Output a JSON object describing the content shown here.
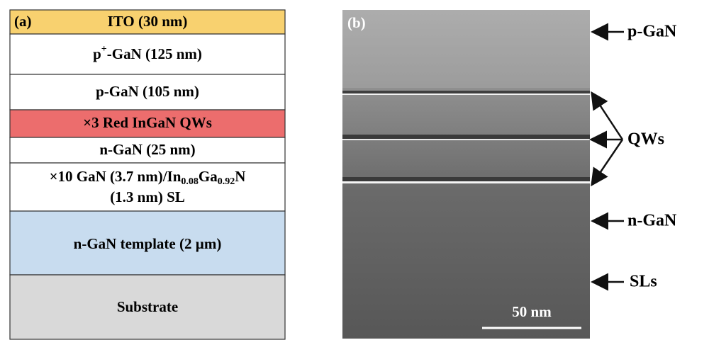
{
  "panel_a": {
    "label": "(a)",
    "layers": [
      {
        "text": "ITO (30 nm)"
      },
      {
        "text": [
          "p",
          "+",
          "-GaN (125 nm)"
        ]
      },
      {
        "text": "p-GaN (105 nm)"
      },
      {
        "text": "×3 Red InGaN QWs"
      },
      {
        "text": "n-GaN (25 nm)"
      },
      {
        "text": [
          "×10 GaN (3.7 nm)/In",
          "0.08",
          "Ga",
          "0.92",
          "N",
          "(1.3 nm) SL"
        ]
      },
      {
        "text": "n-GaN template (2 µm)"
      },
      {
        "text": "Substrate"
      }
    ]
  },
  "panel_b": {
    "label": "(b)",
    "scale_bar": "50 nm",
    "annotations": [
      "p-GaN",
      "QWs",
      "n-GaN",
      "SLs"
    ]
  }
}
